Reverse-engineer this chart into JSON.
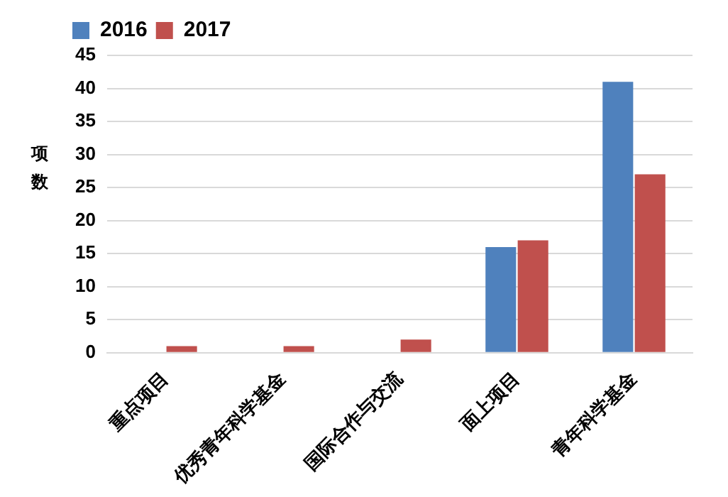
{
  "chart_data": {
    "type": "bar",
    "ylabel": "项数",
    "categories": [
      "重点项目",
      "优秀青年科学基金",
      "国际合作与交流",
      "面上项目",
      "青年科学基金"
    ],
    "series": [
      {
        "name": "2016",
        "color": "#4f81bd",
        "values": [
          0,
          0,
          0,
          16,
          41
        ]
      },
      {
        "name": "2017",
        "color": "#c0504d",
        "values": [
          1,
          1,
          2,
          17,
          27
        ]
      }
    ],
    "ylim": [
      0,
      45
    ],
    "yticks": [
      0,
      5,
      10,
      15,
      20,
      25,
      30,
      35,
      40,
      45
    ],
    "grid": "y",
    "legend": "top left"
  }
}
